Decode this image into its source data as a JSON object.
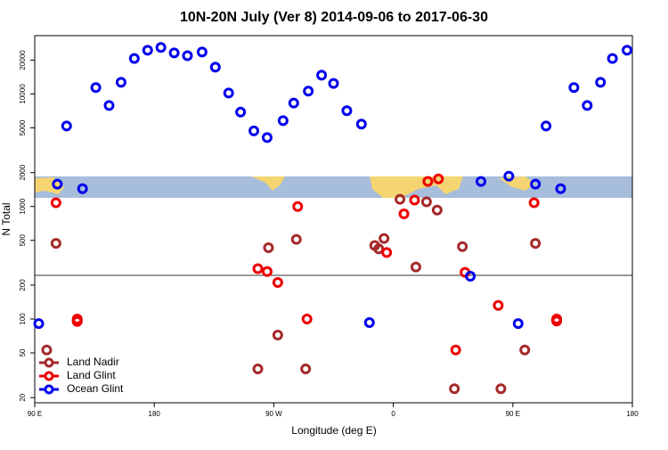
{
  "chart_data": {
    "type": "scatter",
    "title": "10N-20N July (Ver 8)   2014-09-06 to 2017-06-30",
    "x_label": "Longitude (deg E)",
    "y_label": "N Total",
    "ylog": true,
    "xlim": [
      90,
      540
    ],
    "xticks": [
      {
        "value": 90,
        "label": "90 E"
      },
      180,
      {
        "value": 270,
        "label": "90 W"
      },
      {
        "value": 360,
        "label": "0"
      },
      {
        "value": 450,
        "label": "90 E"
      },
      {
        "value": 540,
        "label": "180"
      }
    ],
    "ylim": [
      18,
      33000
    ],
    "yticks": [
      20,
      50,
      100,
      200,
      500,
      1000,
      2000,
      5000,
      10000,
      20000
    ],
    "legend": "bottom-left",
    "series": [
      {
        "name": "Land Nadir",
        "color": "#a52a2a",
        "x": [
          99,
          106,
          122,
          258,
          266,
          273,
          287,
          294,
          346,
          349,
          353,
          365,
          377,
          385,
          393,
          406,
          412,
          441,
          459,
          467
        ],
        "values": [
          53,
          470,
          96,
          36,
          430,
          72,
          510,
          36,
          450,
          420,
          520,
          1160,
          290,
          1100,
          930,
          24,
          440,
          24,
          53,
          470
        ]
      },
      {
        "name": "Land Glint",
        "color": "#ee0000",
        "x": [
          106,
          122,
          122,
          258,
          265,
          273,
          288,
          295,
          355,
          368,
          376,
          386,
          394,
          407,
          414,
          439,
          466,
          483,
          483
        ],
        "values": [
          1080,
          100,
          95,
          280,
          264,
          211,
          1000,
          100,
          390,
          860,
          1140,
          1670,
          1760,
          53,
          260,
          132,
          1080,
          100,
          96
        ]
      },
      {
        "name": "Ocean Glint",
        "color": "#0000ee",
        "x": [
          93,
          107,
          114,
          126,
          136,
          146,
          155,
          165,
          175,
          185,
          195,
          205,
          216,
          226,
          236,
          245,
          255,
          265,
          277,
          285,
          296,
          306,
          315,
          325,
          336,
          342,
          418,
          426,
          447,
          454,
          467,
          475,
          486,
          496,
          506,
          516,
          525,
          536
        ],
        "values": [
          91,
          1580,
          5200,
          1440,
          11400,
          7900,
          12700,
          20700,
          24500,
          25900,
          23200,
          21900,
          23600,
          17300,
          10200,
          6900,
          4700,
          4100,
          5800,
          8300,
          10600,
          14700,
          12400,
          7100,
          5400,
          93,
          240,
          1670,
          1860,
          91,
          1580,
          5200,
          1440,
          11400,
          7900,
          12700,
          20700,
          24500
        ]
      }
    ]
  }
}
